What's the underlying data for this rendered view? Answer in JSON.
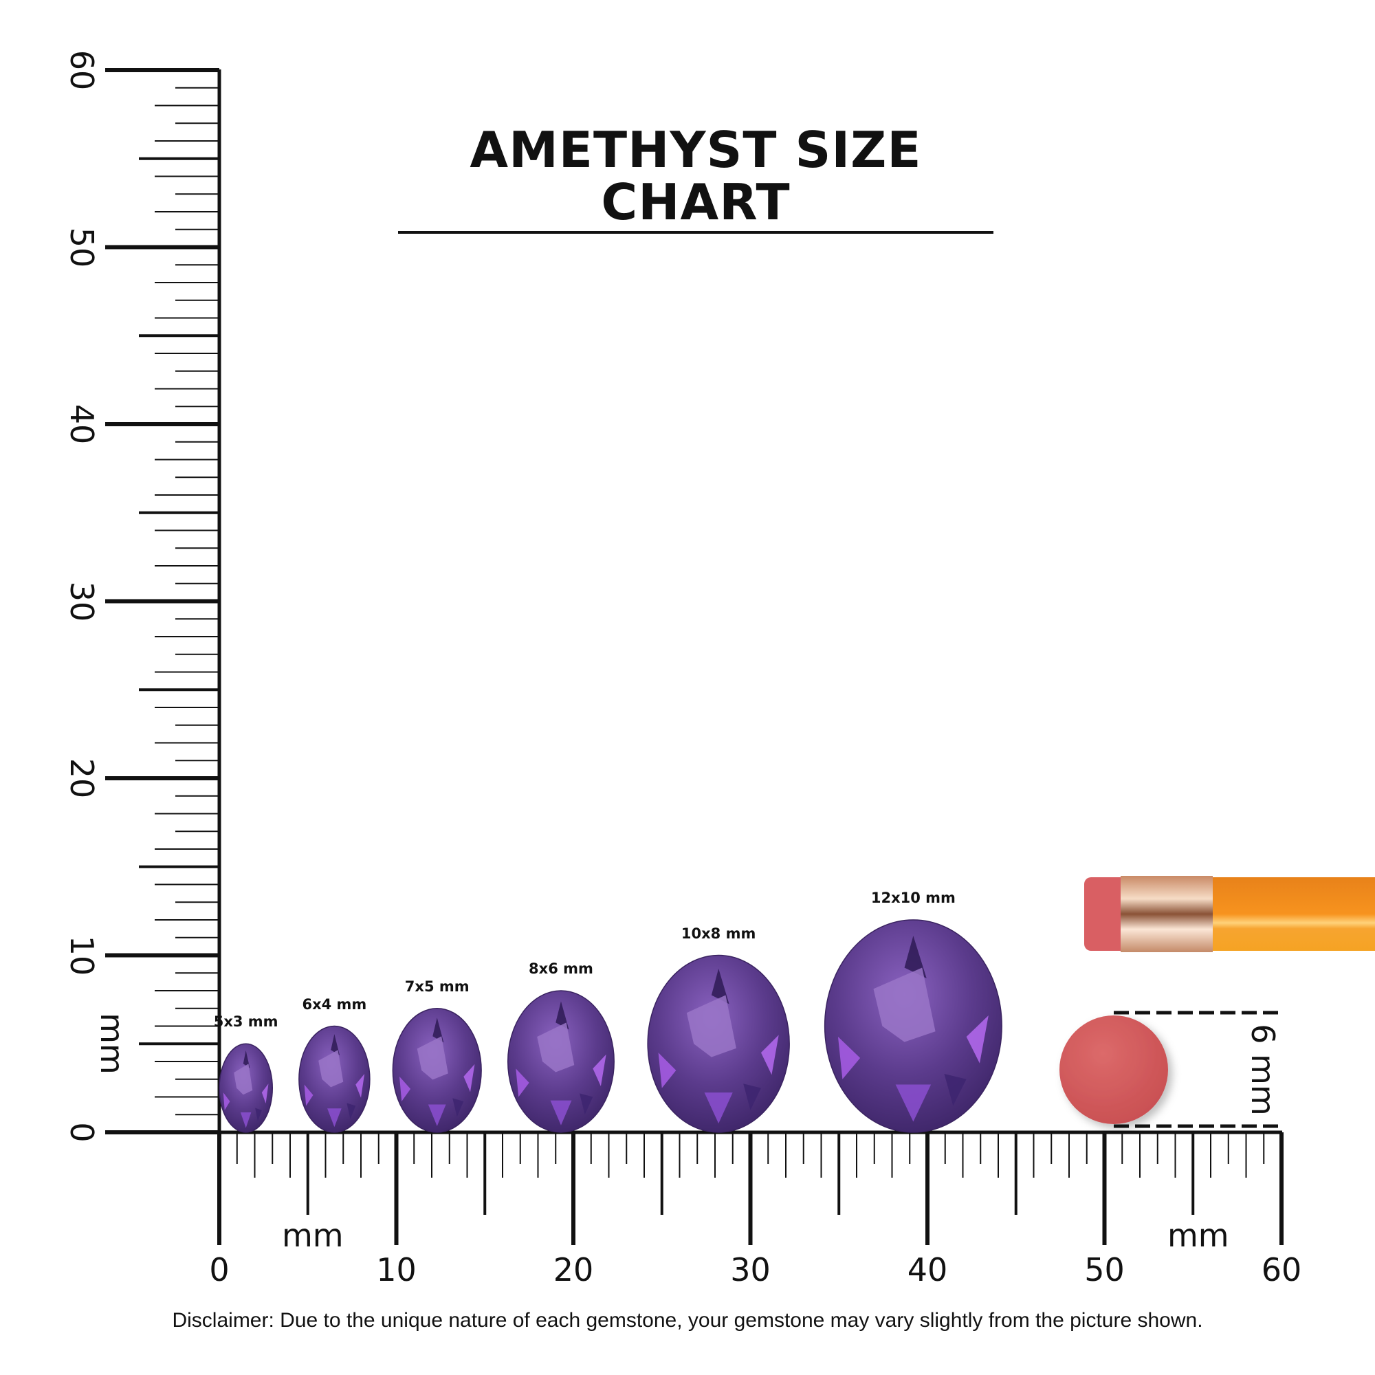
{
  "title": "AMETHYST SIZE CHART",
  "disclaimer": "Disclaimer: Due to the unique nature of each gemstone, your gemstone may vary slightly from the picture shown.",
  "ruler": {
    "unit": "mm",
    "range": [
      0,
      60
    ],
    "vertical_labels": [
      "0",
      "10",
      "20",
      "30",
      "40",
      "50",
      "60"
    ],
    "horizontal_labels": [
      "0",
      "10",
      "20",
      "30",
      "40",
      "50",
      "60"
    ]
  },
  "gems": [
    {
      "label": "5x3 mm",
      "length_mm": 5,
      "width_mm": 3,
      "position_mm": 1.5
    },
    {
      "label": "6x4 mm",
      "length_mm": 6,
      "width_mm": 4,
      "position_mm": 6.5
    },
    {
      "label": "7x5 mm",
      "length_mm": 7,
      "width_mm": 5,
      "position_mm": 12.3
    },
    {
      "label": "8x6 mm",
      "length_mm": 8,
      "width_mm": 6,
      "position_mm": 19.3
    },
    {
      "label": "10x8 mm",
      "length_mm": 10,
      "width_mm": 8,
      "position_mm": 28.2
    },
    {
      "label": "12x10 mm",
      "length_mm": 12,
      "width_mm": 10,
      "position_mm": 39.2
    }
  ],
  "reference": {
    "label": "6 mm",
    "object": "pencil eraser",
    "diameter_mm": 6
  },
  "colors": {
    "gem": "#5b3b8c",
    "gem_highlight": "#a35ee0",
    "eraser": "#d4585a",
    "pencil": "#f7931e",
    "ferrule": "#d9a27a",
    "ink": "#111111"
  }
}
